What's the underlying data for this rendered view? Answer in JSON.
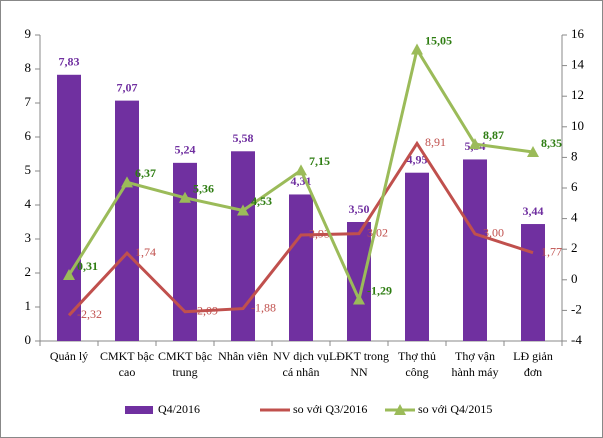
{
  "chart_data": {
    "type": "bar",
    "categories": [
      "Quản lý",
      "CMKT bậc cao",
      "CMKT bậc trung",
      "Nhân viên",
      "NV dịch vụ cá nhân",
      "LĐKT trong NN",
      "Thợ thủ công",
      "Thợ vận hành máy",
      "LĐ giản đơn"
    ],
    "series": [
      {
        "name": "Q4/2016",
        "type": "bar",
        "color": "#7030a0",
        "values": [
          7.83,
          7.07,
          5.24,
          5.58,
          4.31,
          3.5,
          4.95,
          5.34,
          3.44
        ],
        "value_labels": [
          "7,83",
          "7,07",
          "5,24",
          "5,58",
          "4,31",
          "3,50",
          "4,95",
          "5,34",
          "3,44"
        ]
      },
      {
        "name": "so với Q3/2016",
        "type": "line",
        "axis": "y2",
        "color": "#c0504d",
        "values": [
          -2.32,
          1.74,
          -2.09,
          -1.88,
          2.93,
          3.02,
          8.91,
          3.0,
          1.77
        ],
        "value_labels": [
          "-2,32",
          "1,74",
          "-2,09",
          "-1,88",
          "2,93",
          "3,02",
          "8,91",
          "3,00",
          "1,77"
        ]
      },
      {
        "name": "so với Q4/2015",
        "type": "line",
        "axis": "y2",
        "marker": "triangle",
        "color": "#9bbb59",
        "values": [
          0.31,
          6.37,
          5.36,
          4.53,
          7.15,
          -1.29,
          15.05,
          8.87,
          8.35
        ],
        "value_labels": [
          "0,31",
          "6,37",
          "5,36",
          "4,53",
          "7,15",
          "-1,29",
          "15,05",
          "8,87",
          "8,35"
        ]
      }
    ],
    "ylim": [
      0,
      9
    ],
    "yticks": [
      0,
      1,
      2,
      3,
      4,
      5,
      6,
      7,
      8,
      9
    ],
    "y2lim": [
      -4,
      16
    ],
    "y2ticks": [
      -4,
      -2,
      0,
      2,
      4,
      6,
      8,
      10,
      12,
      14,
      16
    ],
    "legend": "bottom"
  }
}
